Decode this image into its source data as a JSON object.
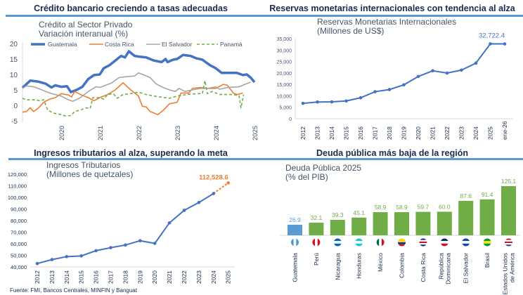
{
  "panels": {
    "credit": {
      "title": "Crédito bancario creciendo a tasas adecuadas"
    },
    "reserves": {
      "title": "Reservas monetarias internacionales con tendencia al alza"
    },
    "taxes": {
      "title": "Ingresos tributarios al alza, superando la meta"
    },
    "debt": {
      "title": "Deuda pública más baja de la región"
    }
  },
  "source": "Fuente: FMI, Bancos Centrales, MINFIN y Banguat",
  "chart_data": [
    {
      "type": "line",
      "title": "Crédito al Sector Privado",
      "subtitle": "Variación interanual (%)",
      "ylim": [
        -5,
        20
      ],
      "yticks": [
        20,
        15,
        10,
        5,
        0,
        -5
      ],
      "xticks": [
        "2020",
        "2021",
        "2022",
        "2023",
        "2024",
        "2025"
      ],
      "legend": "top",
      "grid": false,
      "series": [
        {
          "name": "Guatemala",
          "color": "#4472c4",
          "style": "solid-thick",
          "x": [
            2019.0,
            2019.2,
            2019.4,
            2019.6,
            2019.75,
            2019.85,
            2020.0,
            2020.15,
            2020.25,
            2020.4,
            2020.55,
            2020.7,
            2020.85,
            2021.0,
            2021.1,
            2021.25,
            2021.4,
            2021.55,
            2021.65,
            2021.75,
            2021.9,
            2022.0,
            2022.2,
            2022.4,
            2022.6,
            2022.7,
            2022.75,
            2022.9,
            2023.0,
            2023.15,
            2023.35,
            2023.5,
            2023.65,
            2023.85,
            2024.0,
            2024.15,
            2024.35,
            2024.55,
            2024.7,
            2024.8,
            2024.9,
            2025.0
          ],
          "y": [
            5.7,
            8,
            7.7,
            7,
            5.8,
            6.5,
            6,
            6.2,
            4.3,
            5,
            6,
            8.5,
            9.8,
            10,
            12,
            13,
            14.5,
            16,
            15.5,
            17.5,
            16,
            15.8,
            15.5,
            14.5,
            14,
            15,
            14,
            14.8,
            15,
            16.3,
            16,
            15.2,
            14.8,
            13,
            12,
            10.5,
            10.5,
            10.5,
            9.8,
            10,
            9,
            7.5
          ]
        },
        {
          "name": "Costa Rica",
          "color": "#ed7d31",
          "style": "solid",
          "x": [
            2019.0,
            2019.1,
            2019.2,
            2019.28,
            2019.4,
            2019.55,
            2019.7,
            2019.85,
            2020.0,
            2020.2,
            2020.27,
            2020.35,
            2020.5,
            2020.7,
            2020.85,
            2021.0,
            2021.2,
            2021.4,
            2021.6,
            2021.8,
            2022.0,
            2022.1,
            2022.2,
            2022.3,
            2022.5,
            2022.65,
            2022.8,
            2023.0,
            2023.1,
            2023.3,
            2023.4,
            2023.6,
            2023.8,
            2024.0,
            2024.2,
            2024.3,
            2024.45,
            2024.55,
            2024.7
          ],
          "y": [
            -2.2,
            -2,
            -0.8,
            -2,
            -1,
            1,
            2,
            2.5,
            3.8,
            3.3,
            2.7,
            4.5,
            3.5,
            2.5,
            1.5,
            2.5,
            3.5,
            5,
            7.3,
            5,
            3,
            -0.3,
            -0.5,
            -2,
            -3,
            -1.5,
            0.5,
            1,
            4,
            4,
            5.5,
            5.8,
            5.5,
            5.5,
            6.8,
            6.5,
            4,
            3.5,
            4
          ]
        },
        {
          "name": "El Salvador",
          "color": "#a5a5a5",
          "style": "solid",
          "x": [
            2019.0,
            2019.1,
            2019.3,
            2019.5,
            2019.7,
            2020.0,
            2020.15,
            2020.3,
            2020.5,
            2020.7,
            2020.9,
            2021.0,
            2021.3,
            2021.5,
            2021.7,
            2021.9,
            2022.0,
            2022.15,
            2022.3,
            2022.45,
            2022.6,
            2022.8,
            2022.95,
            2023.05,
            2023.2,
            2023.4,
            2023.6,
            2023.8,
            2024.0,
            2024.1,
            2024.3,
            2024.6,
            2024.75,
            2024.9
          ],
          "y": [
            5.5,
            6.3,
            6,
            5,
            4,
            3,
            2,
            1.3,
            2.5,
            4.5,
            6,
            5.8,
            7.2,
            9,
            9.3,
            9.5,
            10.5,
            9.8,
            9,
            7,
            6,
            5,
            4.5,
            5.5,
            4.5,
            5,
            5.5,
            5.5,
            6,
            5.2,
            5.8,
            6,
            6.8,
            7.5
          ]
        },
        {
          "name": "Panamá",
          "color": "#70ad47",
          "style": "dashed",
          "x": [
            2019.0,
            2019.1,
            2019.3,
            2019.45,
            2019.55,
            2019.65,
            2019.8,
            2020.0,
            2020.1,
            2020.25,
            2020.35,
            2020.5,
            2020.65,
            2020.75,
            2020.82,
            2021.0,
            2021.1,
            2021.2,
            2021.35,
            2021.45,
            2021.6,
            2021.9,
            2022.0,
            2022.2,
            2022.5,
            2022.8,
            2023.0,
            2023.3,
            2023.55,
            2023.65,
            2023.72,
            2023.78,
            2023.9,
            2024.1,
            2024.4,
            2024.6,
            2024.65,
            2024.72
          ],
          "y": [
            2.3,
            1.8,
            1.8,
            1.5,
            1.8,
            -1.5,
            -2.5,
            -3,
            -3.4,
            -3.3,
            -2,
            -1.5,
            -0.8,
            -1,
            2.5,
            2.5,
            2,
            3.5,
            3.8,
            2.3,
            3.5,
            4,
            4.3,
            3.5,
            2.8,
            2.3,
            3,
            3.6,
            3.8,
            3.8,
            8,
            3.8,
            4.5,
            3.5,
            3.5,
            3.2,
            -0.8,
            3.5
          ]
        }
      ]
    },
    {
      "type": "line",
      "title": "Reservas Monetarias Internacionales",
      "subtitle": "(Millones de US$)",
      "ylim": [
        0,
        35000
      ],
      "yticks": [
        "0",
        "5,000",
        "10,000",
        "15,000",
        "20,000",
        "25,000",
        "30,000",
        "35,000"
      ],
      "categories": [
        "2012",
        "2013",
        "2014",
        "2015",
        "2016",
        "2017",
        "2018",
        "2019",
        "2020",
        "2021",
        "2022",
        "2023",
        "2024",
        "2025",
        "ene-26"
      ],
      "values": [
        6700,
        7300,
        7350,
        7750,
        9150,
        11800,
        12750,
        14800,
        18450,
        20950,
        19950,
        21250,
        24300,
        32722.4,
        32700
      ],
      "data_label": "32,722.4",
      "color": "#4472c4",
      "grid": false
    },
    {
      "type": "line",
      "title": "Ingresos Tributarios",
      "subtitle": "(Millones de quetzales)",
      "ylim": [
        40000,
        120000
      ],
      "yticks": [
        "40,000",
        "50,000",
        "60,000",
        "70,000",
        "80,000",
        "90,000",
        "100,000",
        "110,000",
        "120,000"
      ],
      "categories": [
        "2012",
        "2013",
        "2014",
        "2015",
        "2016",
        "2017",
        "2018",
        "2019",
        "2020",
        "2021",
        "2022",
        "2023",
        "2024",
        "2025"
      ],
      "values": [
        42900,
        46300,
        48900,
        49500,
        54000,
        56600,
        58900,
        62600,
        60300,
        78000,
        88800,
        95600,
        103300,
        112528.6
      ],
      "data_label": "112,528.6",
      "color": "#4472c4",
      "projection_color": "#ed7d31",
      "grid": false
    },
    {
      "type": "bar",
      "title": "Deuda Pública 2025",
      "subtitle": "(% del PIB)",
      "categories": [
        "Guatemala",
        "Perú",
        "Nicaragua",
        "Honduras",
        "México",
        "Colombia",
        "Costa Rica",
        "República Dominicana",
        "El Salvador",
        "Brasil",
        "Estados Unidos de América"
      ],
      "values": [
        26.9,
        32.1,
        39.3,
        45.1,
        58.9,
        58.9,
        59.7,
        60.0,
        87.6,
        91.4,
        125.1
      ],
      "labels": [
        "26.9",
        "32.1",
        "39.3",
        "45.1",
        "58.9",
        "58.9",
        "59.7",
        "60.0",
        "87.6",
        "91.4",
        "125.1"
      ],
      "highlight": "Guatemala",
      "colors": {
        "highlight": "#5b9bd5",
        "default": "#70ad47"
      },
      "icons": [
        "guatemala-flag-icon",
        "peru-flag-icon",
        "nicaragua-flag-icon",
        "honduras-flag-icon",
        "mexico-flag-icon",
        "colombia-flag-icon",
        "costa-rica-flag-icon",
        "dominican-republic-flag-icon",
        "el-salvador-flag-icon",
        "brazil-flag-icon",
        "usa-flag-icon"
      ],
      "grid": false
    }
  ]
}
